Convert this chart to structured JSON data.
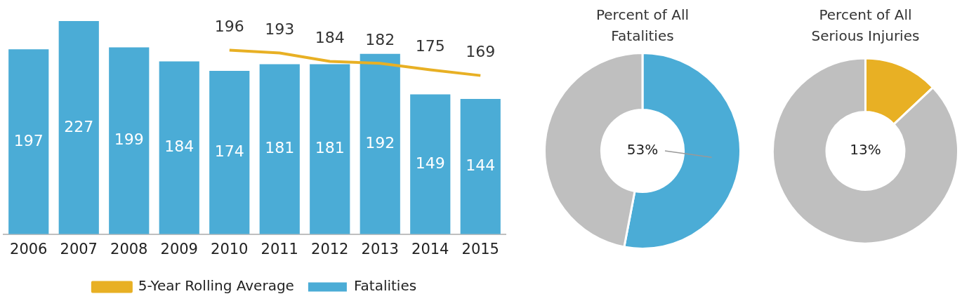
{
  "chart_data": [
    {
      "type": "bar",
      "categories": [
        "2006",
        "2007",
        "2008",
        "2009",
        "2010",
        "2011",
        "2012",
        "2013",
        "2014",
        "2015"
      ],
      "series": [
        {
          "name": "Fatalities",
          "type": "bar",
          "color": "#4bacd6",
          "values": [
            197,
            227,
            199,
            184,
            174,
            181,
            181,
            192,
            149,
            144
          ]
        },
        {
          "name": "5-Year Rolling Average",
          "type": "line",
          "color": "#e8b024",
          "values": [
            null,
            null,
            null,
            null,
            196,
            193,
            184,
            182,
            175,
            169
          ]
        }
      ],
      "data_labels": true,
      "grid": false,
      "legend": "bottom",
      "tick_labels": "x",
      "marker": "none"
    },
    {
      "type": "donut",
      "title": "Percent of All Fatalities",
      "categories": [
        null,
        null
      ],
      "values": [
        53,
        47
      ],
      "colors": [
        "#4bacd6",
        "#bfbfbf"
      ],
      "value_labels": [
        "53%",
        null
      ]
    },
    {
      "type": "donut",
      "title": "Percent of All Serious Injuries",
      "categories": [
        null,
        null
      ],
      "values": [
        13,
        87
      ],
      "colors": [
        "#e8b024",
        "#bfbfbf"
      ],
      "value_labels": [
        "13%",
        null
      ]
    }
  ]
}
